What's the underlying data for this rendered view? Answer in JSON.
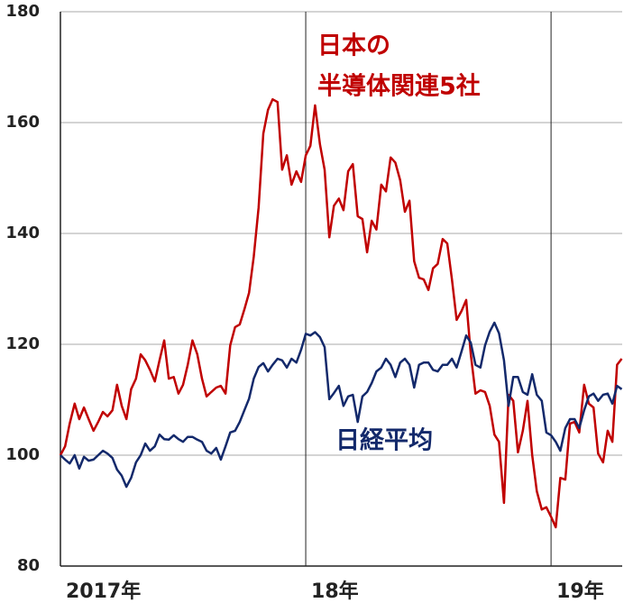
{
  "chart_data": {
    "type": "line",
    "x": [
      2017.0,
      2017.019,
      2017.038,
      2017.058,
      2017.077,
      2017.096,
      2017.115,
      2017.135,
      2017.154,
      2017.173,
      2017.192,
      2017.212,
      2017.231,
      2017.25,
      2017.269,
      2017.288,
      2017.308,
      2017.327,
      2017.346,
      2017.365,
      2017.385,
      2017.404,
      2017.423,
      2017.442,
      2017.462,
      2017.481,
      2017.5,
      2017.519,
      2017.538,
      2017.558,
      2017.577,
      2017.596,
      2017.615,
      2017.635,
      2017.654,
      2017.673,
      2017.692,
      2017.712,
      2017.731,
      2017.75,
      2017.769,
      2017.788,
      2017.808,
      2017.827,
      2017.846,
      2017.865,
      2017.885,
      2017.904,
      2017.923,
      2017.942,
      2017.962,
      2017.981,
      2018.0,
      2018.019,
      2018.038,
      2018.058,
      2018.077,
      2018.096,
      2018.115,
      2018.135,
      2018.154,
      2018.173,
      2018.192,
      2018.212,
      2018.231,
      2018.25,
      2018.269,
      2018.288,
      2018.308,
      2018.327,
      2018.346,
      2018.365,
      2018.385,
      2018.404,
      2018.423,
      2018.442,
      2018.462,
      2018.481,
      2018.5,
      2018.519,
      2018.538,
      2018.558,
      2018.577,
      2018.596,
      2018.615,
      2018.635,
      2018.654,
      2018.673,
      2018.692,
      2018.712,
      2018.731,
      2018.75,
      2018.769,
      2018.788,
      2018.808,
      2018.827,
      2018.846,
      2018.865,
      2018.885,
      2018.904,
      2018.923,
      2018.942,
      2018.962,
      2018.981,
      2019.0,
      2019.019,
      2019.038,
      2019.058,
      2019.077,
      2019.096,
      2019.115,
      2019.135,
      2019.154,
      2019.173,
      2019.192,
      2019.212,
      2019.231,
      2019.25,
      2019.269,
      2019.288
    ],
    "series": [
      {
        "name": [
          "日本の",
          "半導体関連5社"
        ],
        "color": "#c00000",
        "values": [
          100,
          101.6,
          105.7,
          109.3,
          106.5,
          108.6,
          106.5,
          104.4,
          106,
          107.8,
          107,
          108.1,
          112.7,
          108.9,
          106.5,
          111.9,
          113.8,
          118.2,
          117.1,
          115.4,
          113.3,
          117.1,
          120.7,
          113.8,
          114.1,
          111.1,
          112.7,
          116.3,
          120.7,
          118.2,
          113.8,
          110.6,
          111.4,
          112.2,
          112.5,
          111.1,
          119.8,
          123.1,
          123.6,
          126.3,
          129.3,
          135.8,
          144.7,
          158,
          162.3,
          164.2,
          163.7,
          151.5,
          154.1,
          148.8,
          151.2,
          149.3,
          154.1,
          155.8,
          163.1,
          156.1,
          151.5,
          139.3,
          145,
          146.3,
          144.2,
          151.2,
          152.5,
          143.1,
          142.6,
          136.6,
          142.3,
          140.7,
          148.8,
          147.6,
          153.7,
          152.8,
          149.6,
          143.9,
          145.9,
          135,
          132,
          131.7,
          129.8,
          133.7,
          134.5,
          139,
          138.2,
          131.7,
          124.4,
          126,
          128,
          118.2,
          111.1,
          111.7,
          111.4,
          108.9,
          103.7,
          102.4,
          91.4,
          110.9,
          109.8,
          100.5,
          104.4,
          109.8,
          100,
          93.5,
          90.2,
          90.6,
          88.9,
          87,
          95.9,
          95.6,
          105.7,
          106,
          104.1,
          112.7,
          109.3,
          108.6,
          100.3,
          98.7,
          104.4,
          102.4,
          116.3,
          117.4
        ]
      },
      {
        "name": [
          "日経平均"
        ],
        "color": "#13296b",
        "values": [
          100,
          99.2,
          98.5,
          100,
          97.6,
          99.7,
          99,
          99.2,
          100,
          100.8,
          100.3,
          99.5,
          97.4,
          96.3,
          94.3,
          95.9,
          98.7,
          100,
          102.1,
          100.8,
          101.6,
          103.7,
          102.9,
          102.8,
          103.6,
          102.9,
          102.4,
          103.3,
          103.3,
          102.8,
          102.4,
          100.8,
          100.3,
          101.3,
          99.2,
          101.6,
          104.1,
          104.4,
          106,
          108.1,
          110.2,
          113.8,
          115.9,
          116.6,
          115.1,
          116.3,
          117.4,
          117.1,
          115.8,
          117.4,
          116.7,
          119,
          121.9,
          121.6,
          122.2,
          121.3,
          119.5,
          110.1,
          111.2,
          112.5,
          108.9,
          110.6,
          110.9,
          106,
          110.6,
          111.4,
          113,
          115.1,
          115.8,
          117.4,
          116.3,
          114.1,
          116.7,
          117.4,
          116.3,
          112.2,
          116.3,
          116.7,
          116.7,
          115.4,
          115.1,
          116.3,
          116.3,
          117.4,
          115.8,
          118.7,
          121.6,
          120.3,
          116.3,
          115.8,
          119.8,
          122.3,
          123.9,
          122,
          117.1,
          108.9,
          114.1,
          114.1,
          111.4,
          110.9,
          114.6,
          110.9,
          109.8,
          104.1,
          103.6,
          102.4,
          100.8,
          104.9,
          106.5,
          106.5,
          104.9,
          108.1,
          110.6,
          111.1,
          109.8,
          110.9,
          111.1,
          109.3,
          112.5,
          111.9
        ]
      }
    ],
    "xlim": [
      2017,
      2019.29
    ],
    "xticks": [
      {
        "value": 2017,
        "label": "2017年"
      },
      {
        "value": 2018,
        "label": "18年"
      },
      {
        "value": 2019,
        "label": "19年"
      }
    ],
    "ylim": [
      80,
      180
    ],
    "yticks": [
      80,
      100,
      120,
      140,
      160,
      180
    ],
    "grid": true
  }
}
